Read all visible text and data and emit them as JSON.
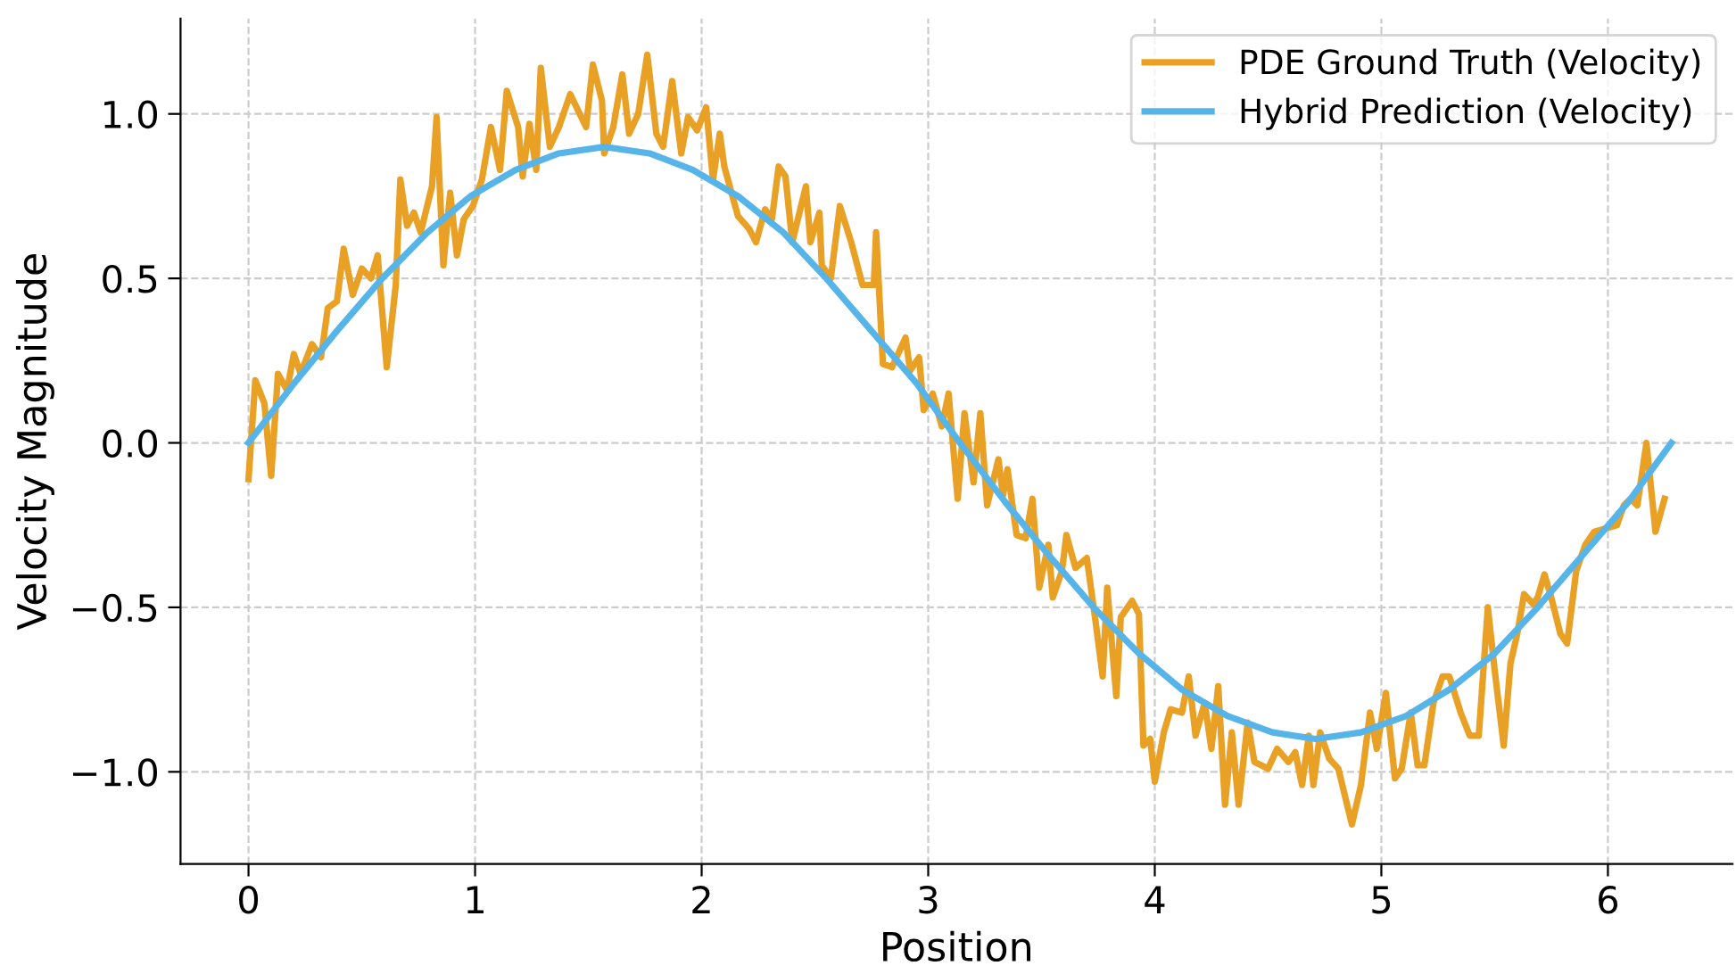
{
  "chart_data": {
    "type": "line",
    "xlabel": "Position",
    "ylabel": "Velocity Magnitude",
    "xlim": [
      -0.3,
      6.55
    ],
    "ylim": [
      -1.28,
      1.29
    ],
    "xticks": [
      0,
      1,
      2,
      3,
      4,
      5,
      6
    ],
    "yticks": [
      {
        "value": -1.0,
        "label": "−1.0"
      },
      {
        "value": -0.5,
        "label": "−0.5"
      },
      {
        "value": 0.0,
        "label": "0.0"
      },
      {
        "value": 0.5,
        "label": "0.5"
      },
      {
        "value": 1.0,
        "label": "1.0"
      }
    ],
    "grid": true,
    "legend": "top right",
    "line_style": "solid",
    "marker": "none",
    "series": [
      {
        "name": "PDE Ground Truth (Velocity)",
        "color": "#e8a025",
        "x": [
          0,
          0.03,
          0.07,
          0.1,
          0.13,
          0.17,
          0.2,
          0.23,
          0.28,
          0.32,
          0.35,
          0.39,
          0.42,
          0.46,
          0.5,
          0.54,
          0.57,
          0.61,
          0.65,
          0.67,
          0.7,
          0.73,
          0.76,
          0.81,
          0.83,
          0.86,
          0.89,
          0.92,
          0.95,
          0.99,
          1.03,
          1.07,
          1.11,
          1.14,
          1.19,
          1.21,
          1.24,
          1.27,
          1.29,
          1.33,
          1.37,
          1.42,
          1.49,
          1.52,
          1.56,
          1.57,
          1.61,
          1.65,
          1.68,
          1.72,
          1.76,
          1.8,
          1.83,
          1.87,
          1.91,
          1.94,
          1.98,
          2.02,
          2.05,
          2.08,
          2.1,
          2.16,
          2.21,
          2.24,
          2.28,
          2.31,
          2.34,
          2.37,
          2.4,
          2.46,
          2.48,
          2.52,
          2.53,
          2.57,
          2.61,
          2.66,
          2.71,
          2.76,
          2.77,
          2.8,
          2.84,
          2.9,
          2.92,
          2.96,
          2.98,
          3.02,
          3.06,
          3.09,
          3.13,
          3.16,
          3.2,
          3.23,
          3.26,
          3.31,
          3.33,
          3.35,
          3.39,
          3.43,
          3.46,
          3.49,
          3.53,
          3.55,
          3.59,
          3.61,
          3.65,
          3.7,
          3.74,
          3.77,
          3.79,
          3.83,
          3.85,
          3.9,
          3.93,
          3.95,
          3.98,
          4.0,
          4.04,
          4.07,
          4.12,
          4.15,
          4.18,
          4.22,
          4.25,
          4.28,
          4.31,
          4.34,
          4.37,
          4.41,
          4.44,
          4.5,
          4.54,
          4.59,
          4.62,
          4.65,
          4.68,
          4.7,
          4.73,
          4.77,
          4.81,
          4.87,
          4.91,
          4.95,
          4.98,
          5.02,
          5.06,
          5.09,
          5.13,
          5.16,
          5.19,
          5.23,
          5.27,
          5.3,
          5.35,
          5.39,
          5.43,
          5.47,
          5.5,
          5.54,
          5.57,
          5.6,
          5.63,
          5.67,
          5.69,
          5.72,
          5.75,
          5.79,
          5.82,
          5.86,
          5.9,
          5.94,
          5.99,
          6.04,
          6.07,
          6.1,
          6.13,
          6.17,
          6.21,
          6.25
        ],
        "values": [
          -0.11,
          0.19,
          0.12,
          -0.1,
          0.21,
          0.16,
          0.27,
          0.21,
          0.3,
          0.26,
          0.41,
          0.43,
          0.59,
          0.45,
          0.53,
          0.5,
          0.57,
          0.23,
          0.48,
          0.8,
          0.66,
          0.7,
          0.64,
          0.78,
          0.99,
          0.54,
          0.76,
          0.57,
          0.68,
          0.72,
          0.8,
          0.96,
          0.83,
          1.07,
          0.96,
          0.81,
          0.97,
          0.83,
          1.14,
          0.9,
          0.96,
          1.06,
          0.96,
          1.15,
          1.04,
          0.88,
          0.96,
          1.12,
          0.94,
          1.0,
          1.18,
          0.94,
          0.9,
          1.1,
          0.88,
          0.99,
          0.95,
          1.02,
          0.8,
          0.94,
          0.84,
          0.69,
          0.65,
          0.61,
          0.71,
          0.68,
          0.84,
          0.81,
          0.61,
          0.78,
          0.61,
          0.7,
          0.54,
          0.5,
          0.72,
          0.61,
          0.48,
          0.48,
          0.64,
          0.24,
          0.23,
          0.32,
          0.22,
          0.26,
          0.1,
          0.15,
          0.05,
          0.15,
          -0.17,
          0.09,
          -0.12,
          0.09,
          -0.19,
          -0.05,
          -0.16,
          -0.08,
          -0.28,
          -0.29,
          -0.17,
          -0.44,
          -0.31,
          -0.47,
          -0.39,
          -0.28,
          -0.38,
          -0.35,
          -0.55,
          -0.71,
          -0.44,
          -0.77,
          -0.53,
          -0.48,
          -0.52,
          -0.92,
          -0.9,
          -1.03,
          -0.88,
          -0.81,
          -0.82,
          -0.71,
          -0.89,
          -0.79,
          -0.93,
          -0.74,
          -1.1,
          -0.88,
          -1.1,
          -0.85,
          -0.97,
          -0.99,
          -0.93,
          -0.97,
          -0.94,
          -1.04,
          -0.89,
          -1.04,
          -0.88,
          -0.96,
          -0.99,
          -1.16,
          -1.04,
          -0.82,
          -0.93,
          -0.76,
          -1.02,
          -0.99,
          -0.82,
          -0.98,
          -0.98,
          -0.79,
          -0.71,
          -0.71,
          -0.82,
          -0.89,
          -0.89,
          -0.5,
          -0.69,
          -0.92,
          -0.67,
          -0.58,
          -0.46,
          -0.49,
          -0.47,
          -0.4,
          -0.47,
          -0.58,
          -0.61,
          -0.39,
          -0.31,
          -0.27,
          -0.26,
          -0.25,
          -0.19,
          -0.17,
          -0.19,
          0.0,
          -0.27,
          -0.17
        ]
      },
      {
        "name": "Hybrid Prediction (Velocity)",
        "color": "#56b4e9",
        "x": [
          0,
          0.2,
          0.39,
          0.59,
          0.79,
          0.98,
          1.18,
          1.37,
          1.57,
          1.77,
          1.96,
          2.16,
          2.36,
          2.55,
          2.75,
          2.95,
          3.14,
          3.34,
          3.53,
          3.73,
          3.93,
          4.12,
          4.32,
          4.52,
          4.71,
          4.91,
          5.11,
          5.3,
          5.5,
          5.69,
          5.89,
          6.09,
          6.28
        ],
        "values": [
          0,
          0.18,
          0.34,
          0.5,
          0.64,
          0.75,
          0.83,
          0.88,
          0.9,
          0.88,
          0.83,
          0.75,
          0.64,
          0.5,
          0.34,
          0.18,
          0,
          -0.18,
          -0.34,
          -0.5,
          -0.64,
          -0.75,
          -0.83,
          -0.88,
          -0.9,
          -0.88,
          -0.83,
          -0.75,
          -0.64,
          -0.5,
          -0.34,
          -0.18,
          0
        ]
      }
    ]
  }
}
